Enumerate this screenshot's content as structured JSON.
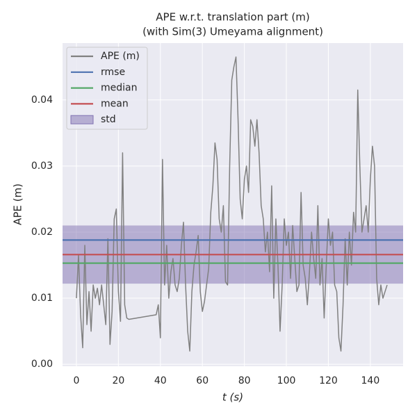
{
  "chart_data": {
    "type": "line",
    "title": "APE w.r.t. translation part (m)",
    "subtitle": "(with Sim(3) Umeyama alignment)",
    "x_label": "t (s)",
    "y_label": "APE (m)",
    "xlim": [
      -6.6,
      155.6
    ],
    "ylim": [
      -0.0003,
      0.0486
    ],
    "xticks": [
      0,
      20,
      40,
      60,
      80,
      100,
      120,
      140
    ],
    "yticks": [
      {
        "value": 0,
        "label": "0.00"
      },
      0.01,
      0.02,
      0.03,
      0.04
    ],
    "grid": true,
    "legend": "upper left",
    "series": [
      {
        "name": "APE (m)",
        "color": "#808080",
        "x": [
          0,
          1,
          2,
          3,
          4,
          5,
          6,
          7,
          8,
          9,
          10,
          11,
          12,
          13,
          14,
          15,
          16,
          17,
          18,
          19,
          20,
          21,
          22,
          23,
          24,
          25,
          38,
          39,
          40,
          41,
          42,
          43,
          44,
          45,
          46,
          47,
          48,
          49,
          50,
          51,
          52,
          53,
          54,
          55,
          56,
          57,
          58,
          59,
          60,
          61,
          62,
          63,
          64,
          65,
          66,
          67,
          68,
          69,
          70,
          71,
          72,
          73,
          74,
          75,
          76,
          77,
          78,
          79,
          80,
          81,
          82,
          83,
          84,
          85,
          86,
          87,
          88,
          89,
          90,
          91,
          92,
          93,
          94,
          95,
          96,
          97,
          98,
          99,
          100,
          101,
          102,
          103,
          104,
          105,
          106,
          107,
          108,
          109,
          110,
          111,
          112,
          113,
          114,
          115,
          116,
          117,
          118,
          119,
          120,
          121,
          122,
          123,
          124,
          125,
          126,
          127,
          128,
          129,
          130,
          131,
          132,
          133,
          134,
          135,
          136,
          137,
          138,
          139,
          140,
          141,
          142,
          143,
          144,
          145,
          146,
          147,
          148
        ],
        "values": [
          0.01,
          0.0165,
          0.0075,
          0.0025,
          0.018,
          0.006,
          0.011,
          0.005,
          0.012,
          0.01,
          0.0115,
          0.009,
          0.012,
          0.009,
          0.006,
          0.019,
          0.003,
          0.008,
          0.022,
          0.0235,
          0.011,
          0.0065,
          0.032,
          0.009,
          0.007,
          0.0068,
          0.0075,
          0.009,
          0.004,
          0.031,
          0.012,
          0.018,
          0.01,
          0.014,
          0.016,
          0.012,
          0.011,
          0.013,
          0.018,
          0.0215,
          0.012,
          0.005,
          0.002,
          0.011,
          0.015,
          0.017,
          0.0195,
          0.011,
          0.008,
          0.0095,
          0.012,
          0.0145,
          0.023,
          0.027,
          0.0335,
          0.031,
          0.022,
          0.02,
          0.024,
          0.0125,
          0.012,
          0.03,
          0.043,
          0.045,
          0.0465,
          0.037,
          0.025,
          0.022,
          0.028,
          0.03,
          0.026,
          0.037,
          0.036,
          0.033,
          0.037,
          0.032,
          0.024,
          0.022,
          0.017,
          0.02,
          0.014,
          0.027,
          0.01,
          0.022,
          0.015,
          0.005,
          0.012,
          0.022,
          0.018,
          0.02,
          0.013,
          0.021,
          0.016,
          0.011,
          0.012,
          0.026,
          0.015,
          0.013,
          0.009,
          0.014,
          0.02,
          0.016,
          0.013,
          0.024,
          0.012,
          0.016,
          0.007,
          0.015,
          0.022,
          0.018,
          0.02,
          0.012,
          0.011,
          0.004,
          0.002,
          0.009,
          0.019,
          0.012,
          0.02,
          0.015,
          0.023,
          0.02,
          0.0415,
          0.03,
          0.02,
          0.022,
          0.024,
          0.02,
          0.028,
          0.033,
          0.03,
          0.013,
          0.009,
          0.012,
          0.01,
          0.011,
          0.012
        ]
      }
    ],
    "stats": [
      {
        "name": "rmse",
        "color": "#4c72b0",
        "value": 0.0188
      },
      {
        "name": "median",
        "color": "#55a868",
        "value": 0.0153
      },
      {
        "name": "mean",
        "color": "#c44e52",
        "value": 0.0166
      },
      {
        "name": "std",
        "color": "#8172b2",
        "value": 0.0044
      }
    ]
  }
}
